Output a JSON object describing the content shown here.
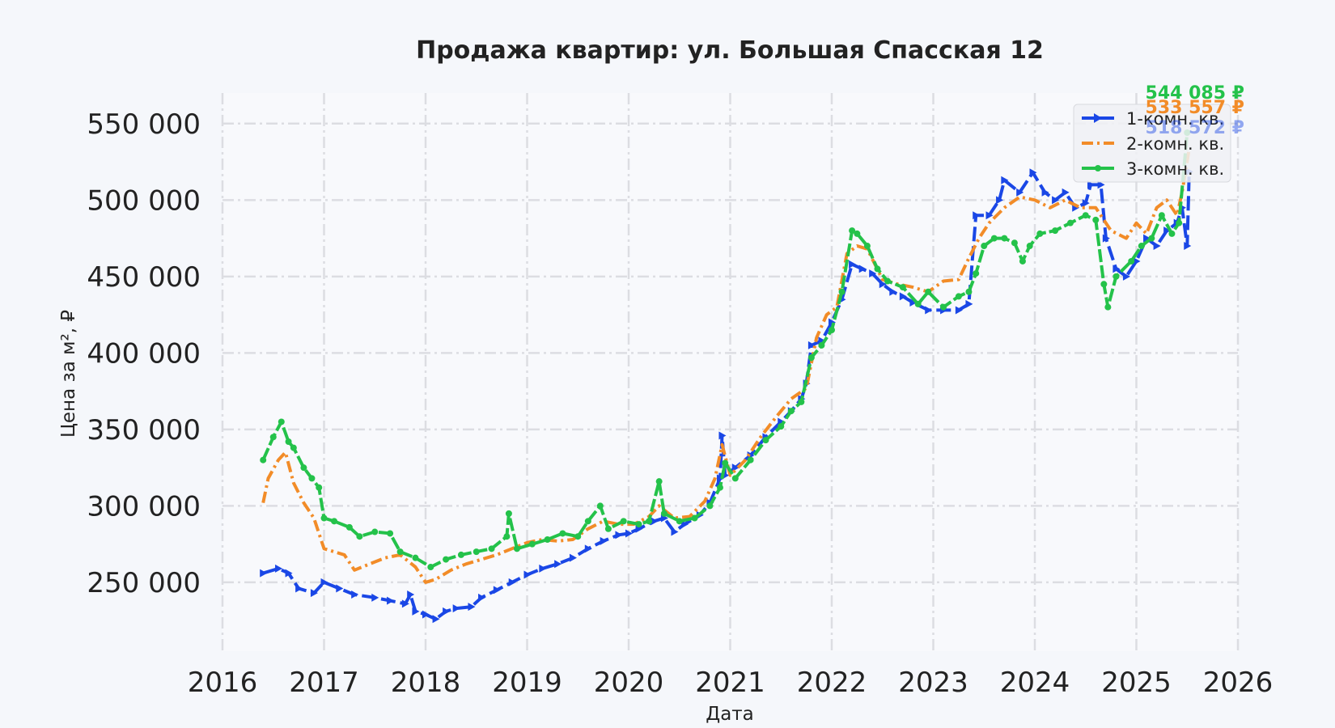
{
  "chart_data": {
    "type": "line",
    "title": "Продажа квартир: ул. Большая Спасская 12",
    "xlabel": "Дата",
    "ylabel": "Цена за м², ₽",
    "xlim": [
      2016.0,
      2026.0
    ],
    "ylim": [
      205000,
      570000
    ],
    "xticks": [
      2016,
      2017,
      2018,
      2019,
      2020,
      2021,
      2022,
      2023,
      2024,
      2025,
      2026
    ],
    "xtick_labels": [
      "2016",
      "2017",
      "2018",
      "2019",
      "2020",
      "2021",
      "2022",
      "2023",
      "2024",
      "2025",
      "2026"
    ],
    "yticks": [
      250000,
      300000,
      350000,
      400000,
      450000,
      500000,
      550000
    ],
    "ytick_labels": [
      "250 000",
      "300 000",
      "350 000",
      "400 000",
      "450 000",
      "500 000",
      "550 000"
    ],
    "grid": true,
    "legend_position": "top-right",
    "series": [
      {
        "name": "1-комн. кв.",
        "color": "#1a47e6",
        "dash": "18,6",
        "marker": "triangle",
        "end_label": "518 572 ₽",
        "end_value": 518572,
        "points": [
          [
            2016.4,
            256000
          ],
          [
            2016.55,
            259000
          ],
          [
            2016.65,
            256000
          ],
          [
            2016.75,
            246000
          ],
          [
            2016.9,
            243000
          ],
          [
            2017.0,
            250000
          ],
          [
            2017.15,
            246000
          ],
          [
            2017.3,
            242000
          ],
          [
            2017.5,
            240000
          ],
          [
            2017.65,
            238000
          ],
          [
            2017.8,
            236000
          ],
          [
            2017.85,
            242000
          ],
          [
            2017.9,
            231000
          ],
          [
            2018.0,
            229000
          ],
          [
            2018.1,
            226000
          ],
          [
            2018.2,
            231000
          ],
          [
            2018.3,
            233000
          ],
          [
            2018.45,
            234000
          ],
          [
            2018.55,
            240000
          ],
          [
            2018.7,
            245000
          ],
          [
            2018.85,
            250000
          ],
          [
            2019.0,
            255000
          ],
          [
            2019.15,
            259000
          ],
          [
            2019.3,
            262000
          ],
          [
            2019.45,
            266000
          ],
          [
            2019.6,
            272000
          ],
          [
            2019.75,
            277000
          ],
          [
            2019.9,
            281000
          ],
          [
            2020.0,
            282000
          ],
          [
            2020.1,
            285000
          ],
          [
            2020.25,
            290000
          ],
          [
            2020.35,
            292000
          ],
          [
            2020.45,
            283000
          ],
          [
            2020.55,
            288000
          ],
          [
            2020.7,
            294000
          ],
          [
            2020.8,
            302000
          ],
          [
            2020.9,
            318000
          ],
          [
            2020.92,
            346000
          ],
          [
            2020.95,
            320000
          ],
          [
            2021.05,
            325000
          ],
          [
            2021.2,
            333000
          ],
          [
            2021.35,
            345000
          ],
          [
            2021.5,
            355000
          ],
          [
            2021.6,
            362000
          ],
          [
            2021.7,
            370000
          ],
          [
            2021.75,
            380000
          ],
          [
            2021.8,
            405000
          ],
          [
            2021.9,
            408000
          ],
          [
            2022.0,
            420000
          ],
          [
            2022.1,
            435000
          ],
          [
            2022.2,
            458000
          ],
          [
            2022.3,
            455000
          ],
          [
            2022.4,
            452000
          ],
          [
            2022.5,
            445000
          ],
          [
            2022.6,
            440000
          ],
          [
            2022.7,
            437000
          ],
          [
            2022.8,
            433000
          ],
          [
            2022.95,
            428000
          ],
          [
            2023.1,
            428000
          ],
          [
            2023.25,
            428000
          ],
          [
            2023.35,
            432000
          ],
          [
            2023.42,
            490000
          ],
          [
            2023.55,
            490000
          ],
          [
            2023.65,
            500000
          ],
          [
            2023.7,
            513000
          ],
          [
            2023.85,
            505000
          ],
          [
            2023.98,
            518000
          ],
          [
            2024.1,
            505000
          ],
          [
            2024.2,
            500000
          ],
          [
            2024.3,
            505000
          ],
          [
            2024.4,
            495000
          ],
          [
            2024.5,
            498000
          ],
          [
            2024.55,
            510000
          ],
          [
            2024.65,
            510000
          ],
          [
            2024.7,
            475000
          ],
          [
            2024.8,
            455000
          ],
          [
            2024.9,
            450000
          ],
          [
            2025.0,
            460000
          ],
          [
            2025.1,
            475000
          ],
          [
            2025.2,
            470000
          ],
          [
            2025.3,
            480000
          ],
          [
            2025.4,
            485000
          ],
          [
            2025.45,
            495000
          ],
          [
            2025.5,
            470000
          ],
          [
            2025.52,
            518572
          ]
        ]
      },
      {
        "name": "2-комн. кв.",
        "color": "#f28c28",
        "dash": "14,5,3,5",
        "marker": "none",
        "end_label": "533 557 ₽",
        "end_value": 533557,
        "points": [
          [
            2016.4,
            302000
          ],
          [
            2016.45,
            318000
          ],
          [
            2016.55,
            330000
          ],
          [
            2016.62,
            335000
          ],
          [
            2016.7,
            315000
          ],
          [
            2016.8,
            302000
          ],
          [
            2016.9,
            292000
          ],
          [
            2017.0,
            272000
          ],
          [
            2017.1,
            270000
          ],
          [
            2017.2,
            268000
          ],
          [
            2017.3,
            258000
          ],
          [
            2017.45,
            262000
          ],
          [
            2017.6,
            266000
          ],
          [
            2017.75,
            268000
          ],
          [
            2017.9,
            260000
          ],
          [
            2018.0,
            250000
          ],
          [
            2018.1,
            252000
          ],
          [
            2018.25,
            258000
          ],
          [
            2018.4,
            262000
          ],
          [
            2018.55,
            265000
          ],
          [
            2018.7,
            268000
          ],
          [
            2018.85,
            272000
          ],
          [
            2019.0,
            276000
          ],
          [
            2019.15,
            278000
          ],
          [
            2019.3,
            277000
          ],
          [
            2019.45,
            278000
          ],
          [
            2019.6,
            285000
          ],
          [
            2019.75,
            290000
          ],
          [
            2019.9,
            288000
          ],
          [
            2020.05,
            288000
          ],
          [
            2020.2,
            293000
          ],
          [
            2020.3,
            300000
          ],
          [
            2020.45,
            292000
          ],
          [
            2020.6,
            293000
          ],
          [
            2020.75,
            303000
          ],
          [
            2020.85,
            318000
          ],
          [
            2020.92,
            340000
          ],
          [
            2021.0,
            320000
          ],
          [
            2021.15,
            330000
          ],
          [
            2021.3,
            345000
          ],
          [
            2021.45,
            358000
          ],
          [
            2021.6,
            370000
          ],
          [
            2021.75,
            377000
          ],
          [
            2021.85,
            410000
          ],
          [
            2021.95,
            425000
          ],
          [
            2022.05,
            430000
          ],
          [
            2022.15,
            465000
          ],
          [
            2022.25,
            470000
          ],
          [
            2022.35,
            468000
          ],
          [
            2022.5,
            448000
          ],
          [
            2022.65,
            445000
          ],
          [
            2022.8,
            443000
          ],
          [
            2022.95,
            440000
          ],
          [
            2023.1,
            447000
          ],
          [
            2023.25,
            448000
          ],
          [
            2023.35,
            462000
          ],
          [
            2023.45,
            475000
          ],
          [
            2023.55,
            485000
          ],
          [
            2023.7,
            495000
          ],
          [
            2023.85,
            502000
          ],
          [
            2024.0,
            500000
          ],
          [
            2024.15,
            495000
          ],
          [
            2024.3,
            500000
          ],
          [
            2024.45,
            495000
          ],
          [
            2024.6,
            495000
          ],
          [
            2024.75,
            480000
          ],
          [
            2024.9,
            475000
          ],
          [
            2025.0,
            485000
          ],
          [
            2025.1,
            478000
          ],
          [
            2025.2,
            495000
          ],
          [
            2025.3,
            500000
          ],
          [
            2025.4,
            490000
          ],
          [
            2025.45,
            505000
          ],
          [
            2025.52,
            533557
          ]
        ]
      },
      {
        "name": "3-комн. кв.",
        "color": "#24c24a",
        "dash": "16,4",
        "marker": "circle",
        "end_label": "544 085 ₽",
        "end_value": 544085,
        "points": [
          [
            2016.4,
            330000
          ],
          [
            2016.5,
            345000
          ],
          [
            2016.58,
            355000
          ],
          [
            2016.65,
            342000
          ],
          [
            2016.7,
            338000
          ],
          [
            2016.8,
            325000
          ],
          [
            2016.88,
            318000
          ],
          [
            2016.95,
            312000
          ],
          [
            2017.0,
            292000
          ],
          [
            2017.1,
            290000
          ],
          [
            2017.25,
            286000
          ],
          [
            2017.35,
            280000
          ],
          [
            2017.5,
            283000
          ],
          [
            2017.65,
            282000
          ],
          [
            2017.75,
            270000
          ],
          [
            2017.9,
            266000
          ],
          [
            2018.05,
            260000
          ],
          [
            2018.2,
            265000
          ],
          [
            2018.35,
            268000
          ],
          [
            2018.5,
            270000
          ],
          [
            2018.65,
            272000
          ],
          [
            2018.8,
            280000
          ],
          [
            2018.82,
            295000
          ],
          [
            2018.9,
            272000
          ],
          [
            2019.05,
            275000
          ],
          [
            2019.2,
            278000
          ],
          [
            2019.35,
            282000
          ],
          [
            2019.5,
            280000
          ],
          [
            2019.6,
            290000
          ],
          [
            2019.72,
            300000
          ],
          [
            2019.8,
            285000
          ],
          [
            2019.95,
            290000
          ],
          [
            2020.1,
            288000
          ],
          [
            2020.2,
            290000
          ],
          [
            2020.3,
            316000
          ],
          [
            2020.35,
            295000
          ],
          [
            2020.5,
            290000
          ],
          [
            2020.65,
            292000
          ],
          [
            2020.8,
            300000
          ],
          [
            2020.9,
            312000
          ],
          [
            2020.95,
            328000
          ],
          [
            2021.05,
            318000
          ],
          [
            2021.2,
            330000
          ],
          [
            2021.35,
            343000
          ],
          [
            2021.5,
            352000
          ],
          [
            2021.6,
            362000
          ],
          [
            2021.7,
            368000
          ],
          [
            2021.8,
            397000
          ],
          [
            2021.9,
            405000
          ],
          [
            2022.0,
            415000
          ],
          [
            2022.1,
            440000
          ],
          [
            2022.2,
            480000
          ],
          [
            2022.25,
            478000
          ],
          [
            2022.35,
            470000
          ],
          [
            2022.45,
            455000
          ],
          [
            2022.55,
            447000
          ],
          [
            2022.7,
            443000
          ],
          [
            2022.85,
            432000
          ],
          [
            2022.95,
            440000
          ],
          [
            2023.1,
            430000
          ],
          [
            2023.25,
            437000
          ],
          [
            2023.35,
            440000
          ],
          [
            2023.42,
            452000
          ],
          [
            2023.5,
            470000
          ],
          [
            2023.6,
            475000
          ],
          [
            2023.7,
            475000
          ],
          [
            2023.8,
            472000
          ],
          [
            2023.88,
            460000
          ],
          [
            2023.95,
            470000
          ],
          [
            2024.05,
            478000
          ],
          [
            2024.2,
            480000
          ],
          [
            2024.35,
            485000
          ],
          [
            2024.5,
            490000
          ],
          [
            2024.6,
            487000
          ],
          [
            2024.68,
            445000
          ],
          [
            2024.72,
            430000
          ],
          [
            2024.8,
            450000
          ],
          [
            2024.95,
            460000
          ],
          [
            2025.05,
            470000
          ],
          [
            2025.15,
            475000
          ],
          [
            2025.25,
            490000
          ],
          [
            2025.35,
            478000
          ],
          [
            2025.42,
            485000
          ],
          [
            2025.5,
            544085
          ]
        ]
      }
    ]
  }
}
